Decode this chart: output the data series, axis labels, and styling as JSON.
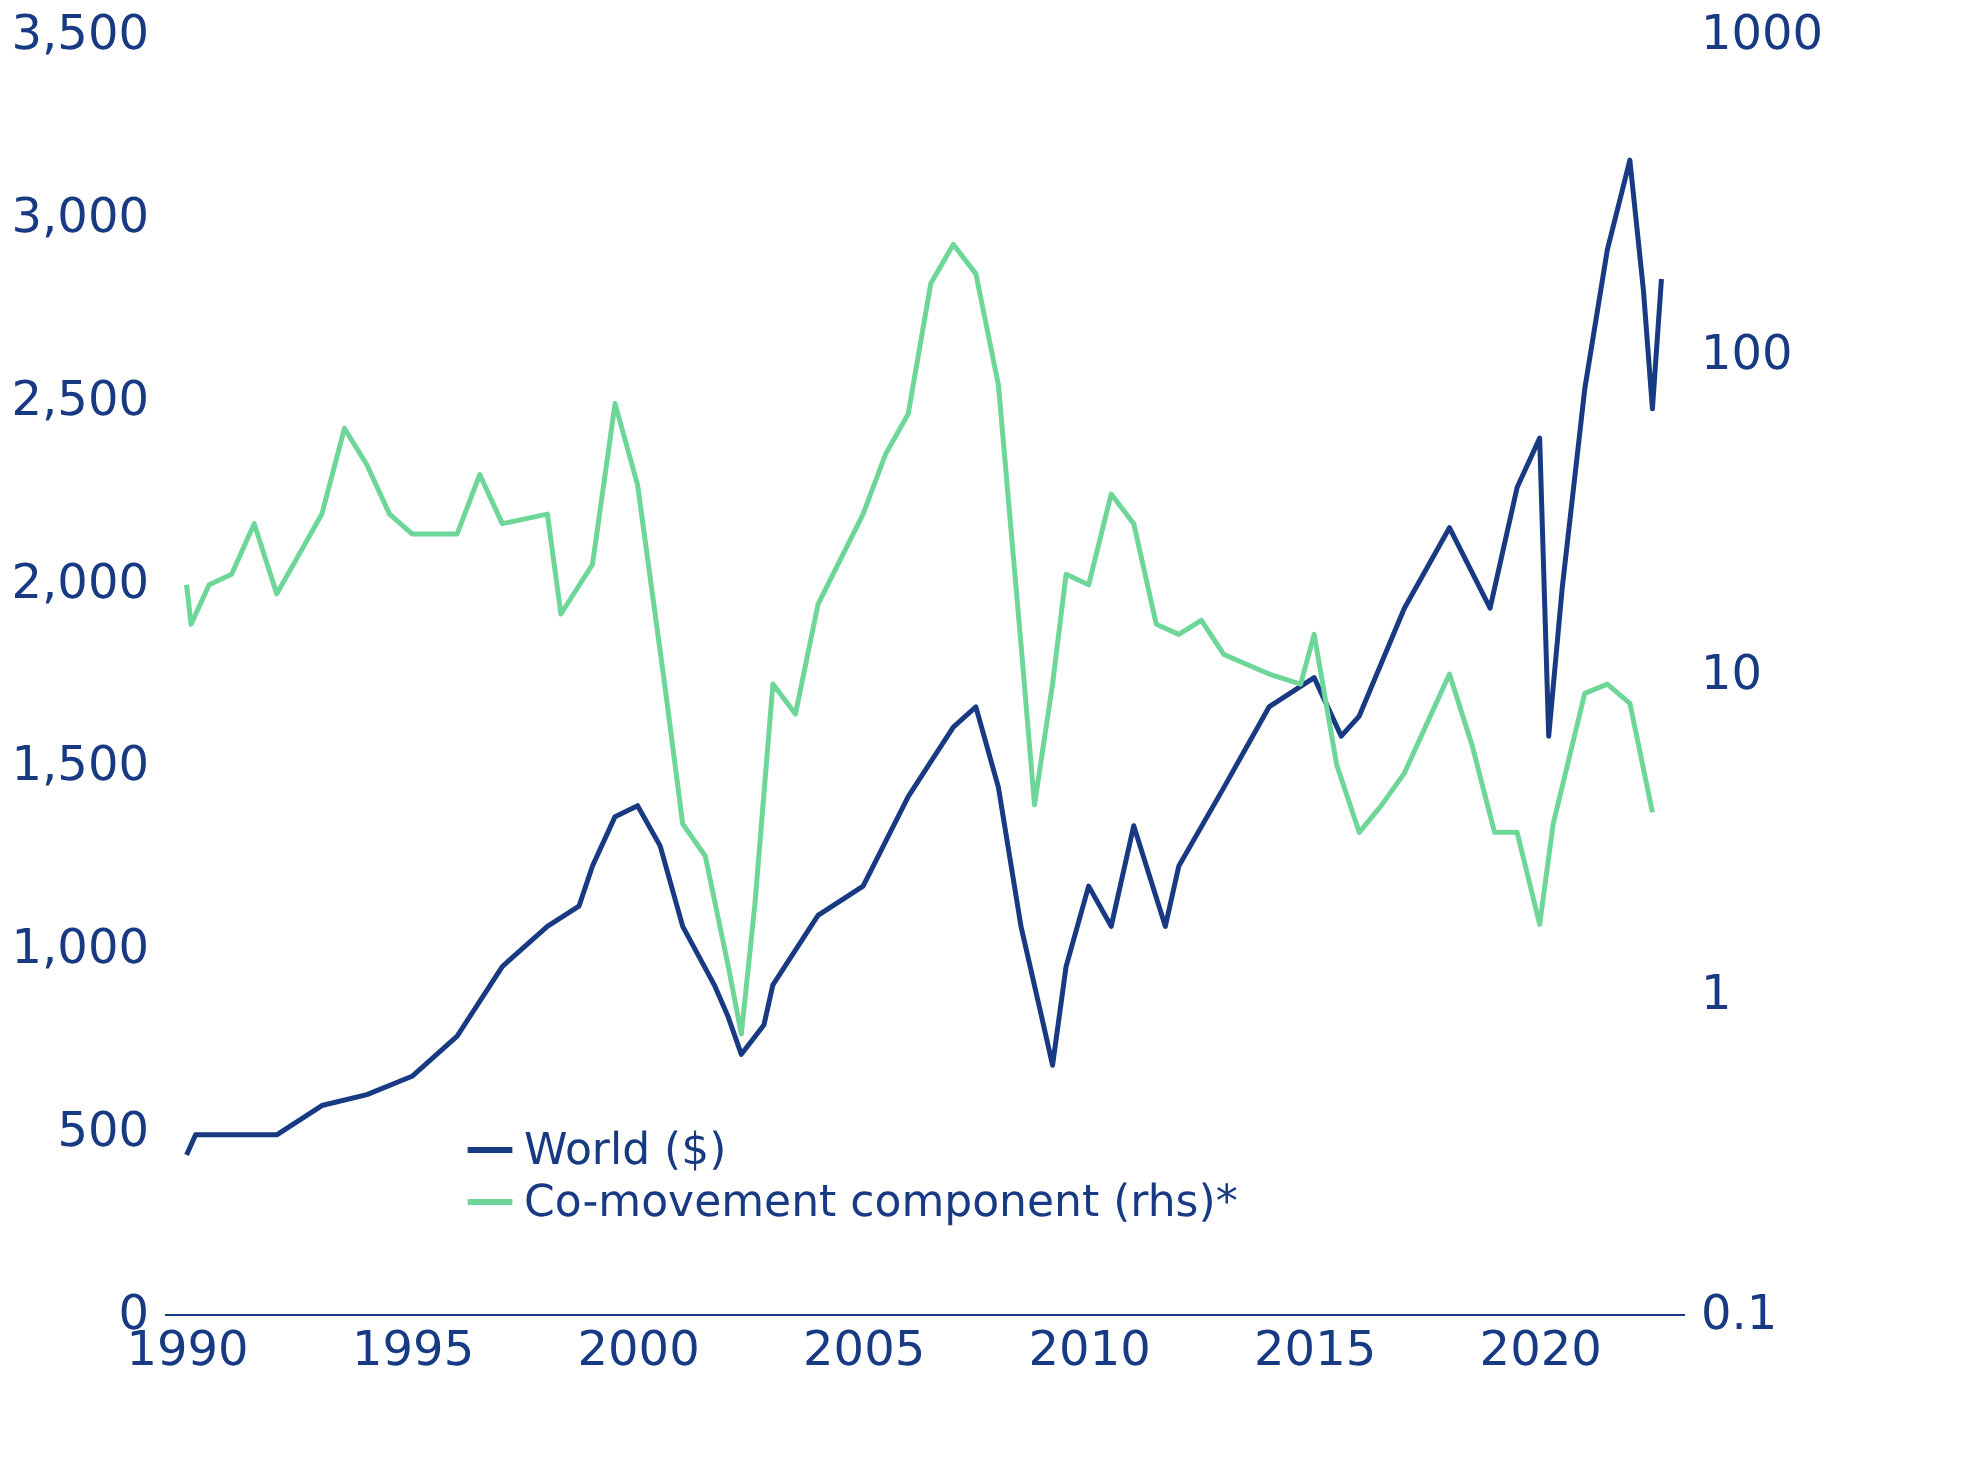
{
  "chart_data": {
    "type": "line",
    "legend": "bottom",
    "grid": false,
    "log": "y2",
    "xlim": [
      1989.5,
      2023.2
    ],
    "xticks": [
      1990,
      1995,
      2000,
      2005,
      2010,
      2015,
      2020
    ],
    "ylim": [
      0,
      3500
    ],
    "yticks": [
      0,
      500,
      {
        "value": 1000,
        "label": "1,000"
      },
      {
        "value": 1500,
        "label": "1,500"
      },
      {
        "value": 2000,
        "label": "2,000"
      },
      {
        "value": 2500,
        "label": "2,500"
      },
      {
        "value": 3000,
        "label": "3,000"
      },
      {
        "value": 3500,
        "label": "3,500"
      }
    ],
    "y2lim": [
      0.1,
      1000
    ],
    "y2ticks": [
      0.1,
      1,
      10,
      100,
      1000
    ],
    "series": [
      {
        "name": "World ($)",
        "color": "#173a83",
        "x": [
          1990,
          1990.2,
          1991,
          1992,
          1993,
          1994,
          1995,
          1996,
          1997,
          1998,
          1998.7,
          1999,
          1999.5,
          2000,
          2000.5,
          2001,
          2001.7,
          2002,
          2002.3,
          2002.8,
          2003,
          2004,
          2005,
          2006,
          2007,
          2007.5,
          2008,
          2008.5,
          2009,
          2009.2,
          2009.5,
          2010,
          2010.5,
          2011,
          2011.7,
          2012,
          2013,
          2014,
          2015,
          2015.6,
          2016,
          2017,
          2018,
          2018.9,
          2019.5,
          2020,
          2020.2,
          2020.5,
          2021,
          2021.5,
          2022,
          2022.3,
          2022.5,
          2022.7
        ],
        "values": [
          435,
          490,
          490,
          490,
          570,
          600,
          650,
          760,
          950,
          1060,
          1115,
          1225,
          1360,
          1390,
          1280,
          1060,
          900,
          815,
          710,
          790,
          900,
          1090,
          1170,
          1415,
          1605,
          1660,
          1440,
          1060,
          790,
          680,
          950,
          1170,
          1060,
          1335,
          1060,
          1225,
          1440,
          1660,
          1740,
          1580,
          1635,
          1930,
          2150,
          1930,
          2260,
          2395,
          1580,
          1985,
          2530,
          2910,
          3155,
          2800,
          2475,
          2830
        ]
      },
      {
        "name": "Co-movement component (rhs)*",
        "color": "#6fd69a",
        "axis": "y2",
        "x": [
          1990,
          1990.1,
          1990.5,
          1991,
          1991.5,
          1992,
          1993,
          1993.5,
          1994,
          1994.5,
          1995,
          1996,
          1996.5,
          1997,
          1998,
          1998.3,
          1999,
          1999.5,
          2000,
          2000.6,
          2001,
          2001.5,
          2002,
          2002.3,
          2002.6,
          2003,
          2003.5,
          2004,
          2005,
          2005.5,
          2006,
          2006.5,
          2007,
          2007.5,
          2008,
          2008.5,
          2008.8,
          2009.2,
          2009.5,
          2010,
          2010.5,
          2011,
          2011.5,
          2012,
          2012.5,
          2013,
          2014,
          2014.7,
          2015,
          2015.5,
          2016,
          2016.5,
          2017,
          2018,
          2018.5,
          2019,
          2019.5,
          2020,
          2020.3,
          2021,
          2021.5,
          2022,
          2022.5
        ],
        "values": [
          19,
          14.3,
          19,
          20.5,
          29.5,
          17.8,
          31.6,
          58.6,
          45,
          31.6,
          27.4,
          27.4,
          42,
          29.5,
          31.6,
          15.4,
          22,
          70,
          39,
          9.3,
          3.4,
          2.7,
          1.24,
          0.75,
          1.9,
          9.3,
          7.5,
          16.5,
          31.6,
          48.7,
          65,
          166,
          220,
          178,
          80,
          12.4,
          3.9,
          9.3,
          20.5,
          19,
          36.5,
          29.5,
          14.3,
          13.3,
          14.7,
          11.5,
          10,
          9.3,
          13.3,
          5.2,
          3.2,
          3.9,
          4.9,
          10,
          6,
          3.2,
          3.2,
          1.65,
          3.4,
          8.7,
          9.3,
          8.1,
          3.7
        ]
      }
    ]
  }
}
